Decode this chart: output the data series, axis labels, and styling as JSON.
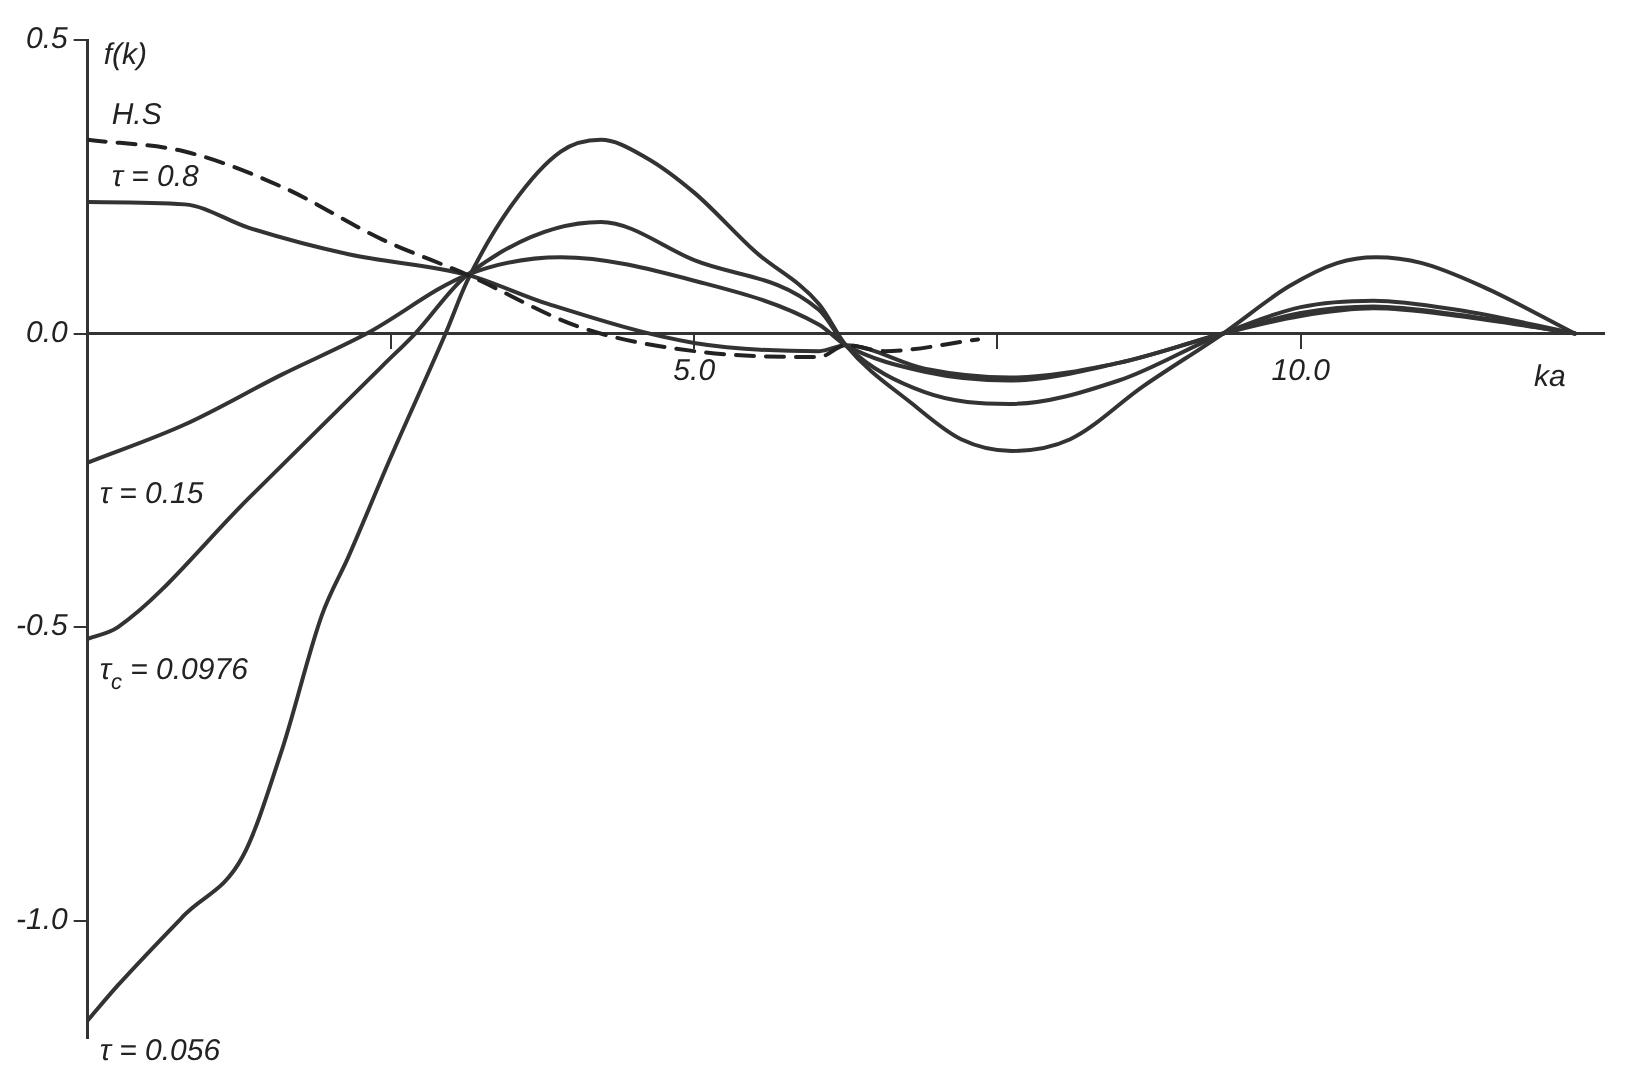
{
  "chart_data": {
    "type": "line",
    "xlabel": "ka",
    "ylabel": "f(k)",
    "xlim": [
      0,
      12.5
    ],
    "ylim": [
      -1.2,
      0.5
    ],
    "xticks": [
      {
        "value": 2.5,
        "label": null
      },
      {
        "value": 5,
        "label": "5.0"
      },
      {
        "value": 7.5,
        "label": null
      },
      {
        "value": 10,
        "label": "10.0"
      }
    ],
    "yticks": [
      0.5,
      {
        "value": 0,
        "label": "0.0"
      },
      -0.5,
      {
        "value": -1,
        "label": "-1.0"
      }
    ],
    "grid": false,
    "legend": false,
    "series": [
      {
        "name": "H.S",
        "color": "#222222",
        "line_style": "dashed",
        "x": [
          0,
          0.8,
          1.6,
          2.43,
          3.13,
          4.07,
          5.0,
          6.03,
          6.25,
          6.57,
          7.34
        ],
        "values": [
          0.33,
          0.31,
          0.25,
          0.16,
          0.1,
          0.01,
          -0.03,
          -0.04,
          -0.02,
          -0.03,
          -0.01
        ]
      },
      {
        "name": "τ = 0.8",
        "color": "#333333",
        "x": [
          0,
          0.8,
          1.33,
          2.15,
          3.13,
          3.8,
          5.0,
          6.03,
          6.25,
          6.9,
          7.6,
          8.5,
          9.36,
          10.0,
          10.6,
          11.3,
          12.26
        ],
        "values": [
          0.224,
          0.22,
          0.18,
          0.135,
          0.1,
          0.05,
          -0.016,
          -0.03,
          -0.02,
          -0.06,
          -0.075,
          -0.05,
          0,
          0.03,
          0.043,
          0.03,
          0
        ]
      },
      {
        "name": "τ = 0.15",
        "color": "#333333",
        "x": [
          0,
          0.8,
          1.6,
          2.3,
          3.13,
          3.9,
          5.0,
          6.03,
          6.25,
          6.9,
          7.6,
          8.5,
          9.36,
          10.0,
          10.6,
          11.3,
          12.26
        ],
        "values": [
          -0.22,
          -0.155,
          -0.07,
          0,
          0.1,
          0.13,
          0.09,
          0.015,
          -0.02,
          -0.065,
          -0.08,
          -0.05,
          0,
          0.035,
          0.046,
          0.032,
          0
        ]
      },
      {
        "name": "τ$_{c}$ = 0.0976",
        "color": "#333333",
        "x": [
          0,
          0.25,
          1.33,
          2.43,
          2.7,
          3.13,
          4.23,
          5.0,
          6.03,
          6.25,
          6.9,
          7.6,
          8.5,
          9.36,
          10.0,
          10.6,
          11.3,
          12.26
        ],
        "values": [
          -0.52,
          -0.5,
          -0.28,
          -0.055,
          0,
          0.1,
          0.19,
          0.125,
          0.04,
          -0.02,
          -0.1,
          -0.12,
          -0.08,
          0,
          0.045,
          0.056,
          0.04,
          0
        ]
      },
      {
        "name": "τ = 0.056",
        "color": "#333333",
        "x": [
          0,
          0.25,
          0.8,
          1.28,
          1.6,
          1.93,
          2.15,
          2.5,
          2.95,
          3.13,
          3.5,
          3.9,
          4.23,
          4.6,
          5.0,
          5.5,
          6.03,
          6.25,
          6.8,
          7.2,
          7.62,
          8.1,
          8.7,
          9.36,
          9.9,
          10.3,
          10.62,
          11.0,
          11.5,
          12.26
        ],
        "values": [
          -1.17,
          -1.11,
          -0.99,
          -0.89,
          -0.71,
          -0.48,
          -0.38,
          -0.21,
          0,
          0.09,
          0.22,
          0.31,
          0.33,
          0.3,
          0.24,
          0.14,
          0.05,
          -0.02,
          -0.12,
          -0.18,
          -0.2,
          -0.18,
          -0.09,
          0,
          0.08,
          0.12,
          0.13,
          0.12,
          0.08,
          0
        ]
      }
    ]
  }
}
